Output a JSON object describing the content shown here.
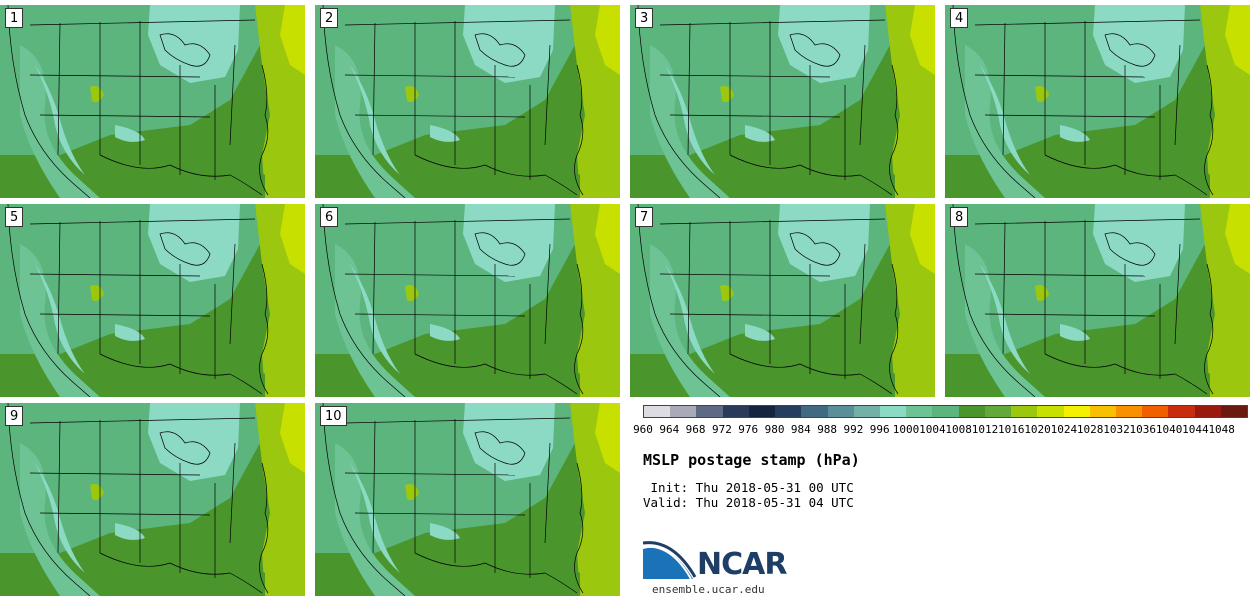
{
  "stamps": [
    {
      "label": "1"
    },
    {
      "label": "2"
    },
    {
      "label": "3"
    },
    {
      "label": "4"
    },
    {
      "label": "5"
    },
    {
      "label": "6"
    },
    {
      "label": "7"
    },
    {
      "label": "8"
    },
    {
      "label": "9"
    },
    {
      "label": "10"
    }
  ],
  "legend": {
    "ticks": [
      "960",
      "964",
      "968",
      "972",
      "976",
      "980",
      "984",
      "988",
      "992",
      "996",
      "1000",
      "1004",
      "1008",
      "1012",
      "1016",
      "1020",
      "1024",
      "1028",
      "1032",
      "1036",
      "1040",
      "1044",
      "1048"
    ],
    "colors": [
      "#dcdce2",
      "#a9a9b7",
      "#5e6a85",
      "#293a5a",
      "#142540",
      "#253d5e",
      "#3f6a82",
      "#5a8f99",
      "#73b0a8",
      "#8cdac4",
      "#6ec395",
      "#5cb57c",
      "#4a962d",
      "#63a83a",
      "#9bc80e",
      "#c8e000",
      "#f5f000",
      "#f8c000",
      "#f89000",
      "#f06000",
      "#c82d0e",
      "#9a1a0e",
      "#6a1a0e"
    ]
  },
  "title": "MSLP postage stamp (hPa)",
  "init": " Init: Thu 2018-05-31 00 UTC",
  "valid": "Valid: Thu 2018-05-31 04 UTC",
  "logo": {
    "text": "NCAR",
    "url": "ensemble.ucar.edu"
  }
}
